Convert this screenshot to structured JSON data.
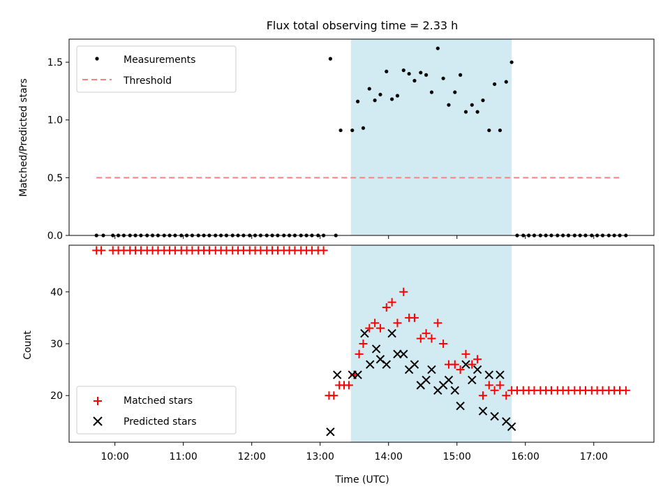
{
  "title": "Flux total observing time = 2.33 h",
  "chart_data": [
    {
      "type": "scatter",
      "panel": "top",
      "ylabel": "Matched/Predicted stars",
      "xlabel": "",
      "xlim": [
        9.33,
        17.88
      ],
      "ylim": [
        0,
        1.7
      ],
      "yticks": [
        0.0,
        0.5,
        1.0,
        1.5
      ],
      "ytick_labels": [
        "0.0",
        "0.5",
        "1.0",
        "1.5"
      ],
      "legend": {
        "position": "top-left",
        "entries": [
          "Measurements",
          "Threshold"
        ]
      },
      "threshold": {
        "name": "Threshold",
        "value": 0.5,
        "x_range": [
          9.73,
          17.42
        ],
        "color": "#ff7f7f"
      },
      "highlight_span": {
        "x_range": [
          13.45,
          15.8
        ],
        "color": "#add8e6"
      },
      "measurements": {
        "name": "Measurements",
        "color": "#000000",
        "x": [
          9.73,
          9.83,
          9.97,
          10.05,
          10.13,
          10.22,
          10.3,
          10.38,
          10.47,
          10.55,
          10.63,
          10.72,
          10.8,
          10.88,
          10.97,
          11.05,
          11.13,
          11.22,
          11.3,
          11.38,
          11.47,
          11.55,
          11.63,
          11.72,
          11.8,
          11.88,
          11.97,
          12.05,
          12.13,
          12.22,
          12.3,
          12.38,
          12.47,
          12.55,
          12.63,
          12.72,
          12.8,
          12.88,
          12.97,
          13.05,
          13.15,
          13.23,
          13.3,
          13.47,
          13.55,
          13.63,
          13.72,
          13.8,
          13.88,
          13.97,
          14.05,
          14.13,
          14.22,
          14.3,
          14.38,
          14.47,
          14.55,
          14.63,
          14.72,
          14.8,
          14.88,
          14.97,
          15.05,
          15.13,
          15.22,
          15.3,
          15.38,
          15.47,
          15.55,
          15.63,
          15.72,
          15.8,
          15.88,
          15.97,
          16.05,
          16.13,
          16.22,
          16.3,
          16.38,
          16.47,
          16.55,
          16.63,
          16.72,
          16.8,
          16.88,
          16.97,
          17.05,
          17.13,
          17.22,
          17.3,
          17.38,
          17.47
        ],
        "y": [
          0,
          0,
          0,
          0,
          0,
          0,
          0,
          0,
          0,
          0,
          0,
          0,
          0,
          0,
          0,
          0,
          0,
          0,
          0,
          0,
          0,
          0,
          0,
          0,
          0,
          0,
          0,
          0,
          0,
          0,
          0,
          0,
          0,
          0,
          0,
          0,
          0,
          0,
          0,
          0,
          1.53,
          0,
          0.91,
          0.91,
          1.16,
          0.93,
          1.27,
          1.17,
          1.22,
          1.42,
          1.18,
          1.21,
          1.43,
          1.4,
          1.34,
          1.41,
          1.39,
          1.24,
          1.62,
          1.36,
          1.13,
          1.24,
          1.39,
          1.07,
          1.13,
          1.07,
          1.17,
          0.91,
          1.31,
          0.91,
          1.33,
          1.5,
          0,
          0,
          0,
          0,
          0,
          0,
          0,
          0,
          0,
          0,
          0,
          0,
          0,
          0,
          0,
          0,
          0,
          0,
          0,
          0
        ]
      }
    },
    {
      "type": "scatter",
      "panel": "bottom",
      "ylabel": "Count",
      "xlabel": "Time (UTC)",
      "xlim": [
        9.33,
        17.88
      ],
      "ylim": [
        11,
        49
      ],
      "yticks": [
        20,
        30,
        40
      ],
      "ytick_labels": [
        "20",
        "30",
        "40"
      ],
      "xticks": [
        10,
        11,
        12,
        13,
        14,
        15,
        16,
        17
      ],
      "xtick_labels": [
        "10:00",
        "11:00",
        "12:00",
        "13:00",
        "14:00",
        "15:00",
        "16:00",
        "17:00"
      ],
      "legend": {
        "position": "bottom-left",
        "entries": [
          "Matched stars",
          "Predicted stars"
        ]
      },
      "highlight_span": {
        "x_range": [
          13.45,
          15.8
        ],
        "color": "#add8e6"
      },
      "series": [
        {
          "name": "Matched stars",
          "marker": "plus",
          "color": "#ff0000",
          "x": [
            9.73,
            9.8,
            9.97,
            10.05,
            10.13,
            10.22,
            10.3,
            10.38,
            10.47,
            10.55,
            10.63,
            10.72,
            10.8,
            10.88,
            10.97,
            11.05,
            11.13,
            11.22,
            11.3,
            11.38,
            11.47,
            11.55,
            11.63,
            11.72,
            11.8,
            11.88,
            11.97,
            12.05,
            12.13,
            12.22,
            12.3,
            12.38,
            12.47,
            12.55,
            12.63,
            12.72,
            12.8,
            12.88,
            12.97,
            13.05,
            13.13,
            13.2,
            13.28,
            13.35,
            13.42,
            13.5,
            13.57,
            13.63,
            13.72,
            13.8,
            13.88,
            13.97,
            14.05,
            14.13,
            14.22,
            14.3,
            14.38,
            14.47,
            14.55,
            14.63,
            14.72,
            14.8,
            14.88,
            14.97,
            15.05,
            15.13,
            15.22,
            15.3,
            15.38,
            15.47,
            15.55,
            15.63,
            15.72,
            15.8,
            15.88,
            15.97,
            16.05,
            16.13,
            16.22,
            16.3,
            16.38,
            16.47,
            16.55,
            16.63,
            16.72,
            16.8,
            16.88,
            16.97,
            17.05,
            17.13,
            17.22,
            17.3,
            17.38,
            17.47
          ],
          "y": [
            48,
            48,
            48,
            48,
            48,
            48,
            48,
            48,
            48,
            48,
            48,
            48,
            48,
            48,
            48,
            48,
            48,
            48,
            48,
            48,
            48,
            48,
            48,
            48,
            48,
            48,
            48,
            48,
            48,
            48,
            48,
            48,
            48,
            48,
            48,
            48,
            48,
            48,
            48,
            48,
            20,
            20,
            22,
            22,
            22,
            24,
            28,
            30,
            33,
            34,
            33,
            37,
            38,
            34,
            40,
            35,
            35,
            31,
            32,
            31,
            34,
            30,
            26,
            26,
            25,
            28,
            26,
            27,
            20,
            22,
            21,
            22,
            20,
            21,
            21,
            21,
            21,
            21,
            21,
            21,
            21,
            21,
            21,
            21,
            21,
            21,
            21,
            21,
            21,
            21,
            21,
            21,
            21,
            21
          ]
        },
        {
          "name": "Predicted stars",
          "marker": "x",
          "color": "#000000",
          "x": [
            13.15,
            13.25,
            13.47,
            13.55,
            13.65,
            13.73,
            13.82,
            13.88,
            13.97,
            14.05,
            14.13,
            14.22,
            14.3,
            14.38,
            14.47,
            14.55,
            14.63,
            14.72,
            14.8,
            14.88,
            14.97,
            15.05,
            15.13,
            15.22,
            15.3,
            15.38,
            15.47,
            15.55,
            15.63,
            15.72,
            15.8
          ],
          "y": [
            13,
            24,
            24,
            24,
            32,
            26,
            29,
            27,
            26,
            32,
            28,
            28,
            25,
            26,
            22,
            23,
            25,
            21,
            22,
            23,
            21,
            18,
            26,
            23,
            25,
            17,
            24,
            16,
            24,
            15,
            14
          ]
        }
      ]
    }
  ]
}
